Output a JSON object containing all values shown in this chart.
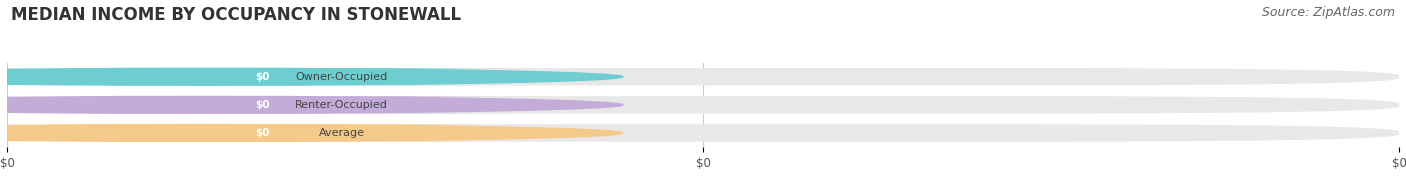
{
  "title": "MEDIAN INCOME BY OCCUPANCY IN STONEWALL",
  "source": "Source: ZipAtlas.com",
  "categories": [
    "Owner-Occupied",
    "Renter-Occupied",
    "Average"
  ],
  "values": [
    0,
    0,
    0
  ],
  "bar_colors": [
    "#6ecdd1",
    "#c4acd8",
    "#f5c98a"
  ],
  "bar_bg_color": "#e8e8e8",
  "white_pill_color": "#ffffff",
  "bar_label_text_color": "#ffffff",
  "category_text_color": "#444444",
  "value_text_color": "#ffffff",
  "xtick_labels": [
    "$0",
    "$0",
    "$0"
  ],
  "xtick_positions": [
    0.0,
    0.5,
    1.0
  ],
  "figsize": [
    14.06,
    1.96
  ],
  "dpi": 100,
  "title_fontsize": 12,
  "source_fontsize": 9,
  "bg_color": "#ffffff"
}
